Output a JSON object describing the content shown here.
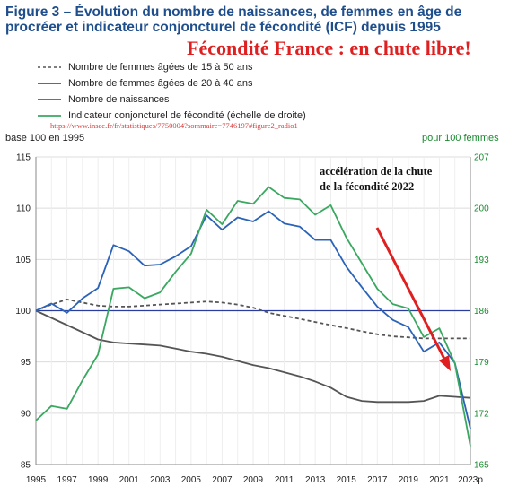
{
  "title": "Figure 3 – Évolution du nombre de naissances, de femmes en âge de procréer et indicateur conjoncturel de fécondité (ICF) depuis 1995",
  "headline": "Fécondité France : en chute libre!",
  "source": "https://www.insee.fr/fr/statistiques/7750004?sommaire=7746197#figure2_radio1",
  "annotation": "accélération de la chute de la fécondité 2022",
  "colors": {
    "title": "#1f4e8c",
    "blue": "#2b63b8",
    "green": "#3aa860",
    "gray": "#555555",
    "red": "#e02020",
    "right_axis": "#1a8a30"
  },
  "chart_data": {
    "type": "line",
    "x": [
      1995,
      1996,
      1997,
      1998,
      1999,
      2000,
      2001,
      2002,
      2003,
      2004,
      2005,
      2006,
      2007,
      2008,
      2009,
      2010,
      2011,
      2012,
      2013,
      2014,
      2015,
      2016,
      2017,
      2018,
      2019,
      2020,
      2021,
      2022,
      2023
    ],
    "x_tick_labels": [
      "1995",
      "1997",
      "1999",
      "2001",
      "2003",
      "2005",
      "2007",
      "2009",
      "2011",
      "2013",
      "2015",
      "2017",
      "2019",
      "2021",
      "2023p"
    ],
    "ylabel": "base 100 en 1995",
    "y2label": "pour 100 femmes",
    "ylim": [
      85,
      115
    ],
    "y_ticks": [
      85,
      90,
      95,
      100,
      105,
      110,
      115
    ],
    "y2lim": [
      165,
      207
    ],
    "y2_ticks": [
      165,
      172,
      179,
      186,
      193,
      200,
      207
    ],
    "reference_line": 100,
    "series": [
      {
        "name": "Nombre de femmes âgées de 15 à 50 ans",
        "axis": "left",
        "style": "dashed",
        "color": "#555555",
        "values": [
          100.0,
          100.6,
          101.1,
          100.8,
          100.5,
          100.4,
          100.4,
          100.5,
          100.6,
          100.7,
          100.8,
          100.9,
          100.8,
          100.6,
          100.3,
          99.8,
          99.5,
          99.2,
          98.9,
          98.6,
          98.3,
          98.0,
          97.7,
          97.5,
          97.4,
          97.3,
          97.3,
          97.3,
          97.3
        ]
      },
      {
        "name": "Nombre de femmes âgées de 20 à 40 ans",
        "axis": "left",
        "style": "solid",
        "color": "#555555",
        "values": [
          100.0,
          99.3,
          98.6,
          97.9,
          97.2,
          96.9,
          96.8,
          96.7,
          96.6,
          96.3,
          96.0,
          95.8,
          95.5,
          95.1,
          94.7,
          94.4,
          94.0,
          93.6,
          93.1,
          92.5,
          91.6,
          91.2,
          91.1,
          91.1,
          91.1,
          91.2,
          91.7,
          91.6,
          91.5
        ]
      },
      {
        "name": "Nombre de naissances",
        "axis": "left",
        "style": "solid",
        "color": "#2b63b8",
        "values": [
          100.0,
          100.7,
          99.8,
          101.2,
          102.2,
          106.4,
          105.8,
          104.4,
          104.5,
          105.3,
          106.3,
          109.3,
          107.9,
          109.1,
          108.7,
          109.7,
          108.5,
          108.2,
          106.9,
          106.9,
          104.3,
          102.3,
          100.4,
          99.1,
          98.4,
          96.0,
          96.9,
          94.9,
          88.5
        ]
      },
      {
        "name": "Indicateur conjoncturel de fécondité (échelle de droite)",
        "axis": "right",
        "style": "solid",
        "color": "#3aa860",
        "values": [
          171.0,
          173.0,
          172.6,
          176.5,
          180.0,
          189.0,
          189.2,
          187.7,
          188.5,
          191.3,
          193.8,
          199.8,
          197.8,
          201.0,
          200.6,
          202.9,
          201.4,
          201.2,
          199.1,
          200.4,
          196.0,
          192.5,
          189.0,
          186.9,
          186.3,
          182.4,
          183.6,
          178.8,
          167.5
        ]
      }
    ]
  }
}
